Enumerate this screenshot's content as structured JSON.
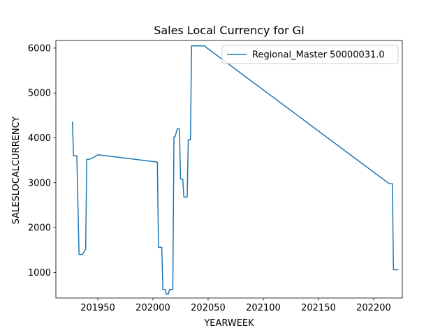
{
  "chart_data": {
    "type": "line",
    "title": "Sales Local Currency for GI",
    "xlabel": "YEARWEEK",
    "ylabel": "SALESLOCALCURRENCY",
    "xlim": [
      201912,
      202226
    ],
    "ylim": [
      430,
      6170
    ],
    "xticks": [
      201950,
      202000,
      202050,
      202100,
      202150,
      202200
    ],
    "yticks": [
      1000,
      2000,
      3000,
      4000,
      5000,
      6000
    ],
    "grid": false,
    "legend_position": "upper right",
    "series": [
      {
        "name": "Regional_Master 50000031.0",
        "color": "#1f77b4",
        "x": [
          201927,
          201928,
          201930,
          201931,
          201933,
          201934,
          201936,
          201939,
          201940,
          201942,
          201946,
          201950,
          201951,
          202001,
          202002,
          202003,
          202004,
          202005,
          202006,
          202008,
          202009,
          202010,
          202011,
          202012,
          202013,
          202014,
          202015,
          202016,
          202017,
          202018,
          202019,
          202020,
          202022,
          202023,
          202024,
          202025,
          202026,
          202027,
          202028,
          202029,
          202031,
          202032,
          202033,
          202034,
          202035,
          202036,
          202037,
          202038,
          202039,
          202040,
          202041,
          202042,
          202043,
          202044,
          202045,
          202046,
          202047,
          202048,
          202214,
          202215,
          202216,
          202217,
          202218,
          202219,
          202220,
          202221,
          202222
        ],
        "y": [
          4350,
          3600,
          3600,
          3600,
          1400,
          1400,
          1400,
          1520,
          3520,
          3520,
          3560,
          3620,
          3620,
          3470,
          3470,
          3460,
          3460,
          1560,
          1560,
          1560,
          620,
          620,
          620,
          520,
          520,
          520,
          620,
          620,
          620,
          620,
          4020,
          4020,
          4200,
          4200,
          4200,
          3080,
          3080,
          3080,
          2680,
          2680,
          2680,
          3960,
          3960,
          3960,
          6050,
          6050,
          6050,
          6050,
          6050,
          6050,
          6050,
          6050,
          6050,
          6050,
          6050,
          6050,
          6050,
          6020,
          2980,
          2980,
          2980,
          2980,
          1060,
          1060,
          1060,
          1060,
          1060
        ]
      }
    ]
  }
}
